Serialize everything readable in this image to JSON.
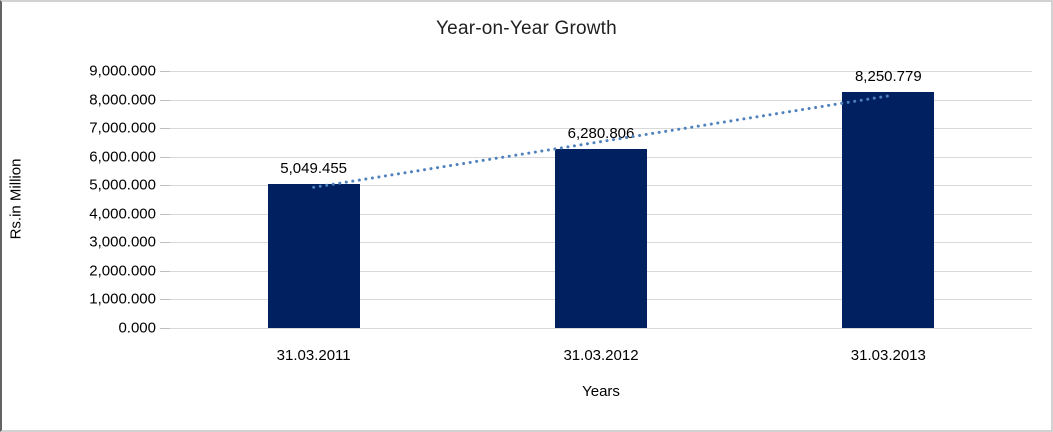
{
  "chart_data": {
    "type": "bar",
    "title": "Year-on-Year Growth",
    "categories": [
      "31.03.2011",
      "31.03.2012",
      "31.03.2013"
    ],
    "values": [
      5049.455,
      6280.806,
      8250.779
    ],
    "data_labels": [
      "5,049.455",
      "6,280.806",
      "8,250.779"
    ],
    "xlabel": "Years",
    "ylabel": "Rs.in Million",
    "ylim": [
      0,
      9000
    ],
    "ytick_step": 1000,
    "ytick_labels": [
      "0.000",
      "1,000.000",
      "2,000.000",
      "3,000.000",
      "4,000.000",
      "5,000.000",
      "6,000.000",
      "7,000.000",
      "8,000.000",
      "9,000.000"
    ],
    "grid": true,
    "legend_position": "none",
    "bar_color": "#002060",
    "trendline": {
      "type": "linear",
      "style": "dotted",
      "color": "#4f81bd"
    },
    "gridline_color": "#d9d9d9"
  }
}
